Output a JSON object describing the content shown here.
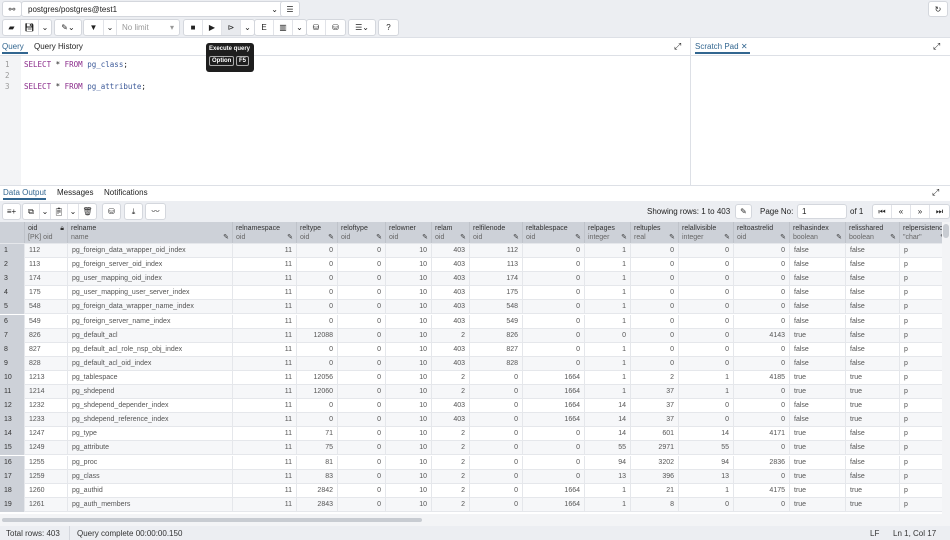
{
  "connection": {
    "label": "postgres/postgres@test1"
  },
  "toolbar": {
    "limit": "No limit",
    "tooltip_title": "Execute query",
    "tooltip_key1": "Option",
    "tooltip_key2": "F5"
  },
  "editor_tabs": [
    "Query",
    "Query History"
  ],
  "scratch_pad": {
    "label": "Scratch Pad"
  },
  "code": [
    "SELECT * FROM pg_class;",
    "",
    "SELECT * FROM pg_attribute;"
  ],
  "output_tabs": [
    "Data Output",
    "Messages",
    "Notifications"
  ],
  "pager": {
    "showing": "Showing rows: 1 to 403",
    "page_label": "Page No:",
    "page": "1",
    "of": "of 1"
  },
  "columns": [
    {
      "name": "oid",
      "type": "[PK] oid"
    },
    {
      "name": "relname",
      "type": "name"
    },
    {
      "name": "relnamespace",
      "type": "oid"
    },
    {
      "name": "reltype",
      "type": "oid"
    },
    {
      "name": "reloftype",
      "type": "oid"
    },
    {
      "name": "relowner",
      "type": "oid"
    },
    {
      "name": "relam",
      "type": "oid"
    },
    {
      "name": "relfilenode",
      "type": "oid"
    },
    {
      "name": "reltablespace",
      "type": "oid"
    },
    {
      "name": "relpages",
      "type": "integer"
    },
    {
      "name": "reltuples",
      "type": "real"
    },
    {
      "name": "relallvisible",
      "type": "integer"
    },
    {
      "name": "reltoastrelid",
      "type": "oid"
    },
    {
      "name": "relhasindex",
      "type": "boolean"
    },
    {
      "name": "relisshared",
      "type": "boolean"
    },
    {
      "name": "relpersistence",
      "type": "\"char\""
    }
  ],
  "rows": [
    [
      "112",
      "pg_foreign_data_wrapper_oid_index",
      "11",
      "0",
      "0",
      "10",
      "403",
      "112",
      "0",
      "1",
      "0",
      "0",
      "0",
      "false",
      "false",
      "p"
    ],
    [
      "113",
      "pg_foreign_server_oid_index",
      "11",
      "0",
      "0",
      "10",
      "403",
      "113",
      "0",
      "1",
      "0",
      "0",
      "0",
      "false",
      "false",
      "p"
    ],
    [
      "174",
      "pg_user_mapping_oid_index",
      "11",
      "0",
      "0",
      "10",
      "403",
      "174",
      "0",
      "1",
      "0",
      "0",
      "0",
      "false",
      "false",
      "p"
    ],
    [
      "175",
      "pg_user_mapping_user_server_index",
      "11",
      "0",
      "0",
      "10",
      "403",
      "175",
      "0",
      "1",
      "0",
      "0",
      "0",
      "false",
      "false",
      "p"
    ],
    [
      "548",
      "pg_foreign_data_wrapper_name_index",
      "11",
      "0",
      "0",
      "10",
      "403",
      "548",
      "0",
      "1",
      "0",
      "0",
      "0",
      "false",
      "false",
      "p"
    ],
    [
      "549",
      "pg_foreign_server_name_index",
      "11",
      "0",
      "0",
      "10",
      "403",
      "549",
      "0",
      "1",
      "0",
      "0",
      "0",
      "false",
      "false",
      "p"
    ],
    [
      "826",
      "pg_default_acl",
      "11",
      "12088",
      "0",
      "10",
      "2",
      "826",
      "0",
      "0",
      "0",
      "0",
      "4143",
      "true",
      "false",
      "p"
    ],
    [
      "827",
      "pg_default_acl_role_nsp_obj_index",
      "11",
      "0",
      "0",
      "10",
      "403",
      "827",
      "0",
      "1",
      "0",
      "0",
      "0",
      "false",
      "false",
      "p"
    ],
    [
      "828",
      "pg_default_acl_oid_index",
      "11",
      "0",
      "0",
      "10",
      "403",
      "828",
      "0",
      "1",
      "0",
      "0",
      "0",
      "false",
      "false",
      "p"
    ],
    [
      "1213",
      "pg_tablespace",
      "11",
      "12056",
      "0",
      "10",
      "2",
      "0",
      "1664",
      "1",
      "2",
      "1",
      "4185",
      "true",
      "true",
      "p"
    ],
    [
      "1214",
      "pg_shdepend",
      "11",
      "12060",
      "0",
      "10",
      "2",
      "0",
      "1664",
      "1",
      "37",
      "1",
      "0",
      "true",
      "true",
      "p"
    ],
    [
      "1232",
      "pg_shdepend_depender_index",
      "11",
      "0",
      "0",
      "10",
      "403",
      "0",
      "1664",
      "14",
      "37",
      "0",
      "0",
      "false",
      "true",
      "p"
    ],
    [
      "1233",
      "pg_shdepend_reference_index",
      "11",
      "0",
      "0",
      "10",
      "403",
      "0",
      "1664",
      "14",
      "37",
      "0",
      "0",
      "false",
      "true",
      "p"
    ],
    [
      "1247",
      "pg_type",
      "11",
      "71",
      "0",
      "10",
      "2",
      "0",
      "0",
      "14",
      "601",
      "14",
      "4171",
      "true",
      "false",
      "p"
    ],
    [
      "1249",
      "pg_attribute",
      "11",
      "75",
      "0",
      "10",
      "2",
      "0",
      "0",
      "55",
      "2971",
      "55",
      "0",
      "true",
      "false",
      "p"
    ],
    [
      "1255",
      "pg_proc",
      "11",
      "81",
      "0",
      "10",
      "2",
      "0",
      "0",
      "94",
      "3202",
      "94",
      "2836",
      "true",
      "false",
      "p"
    ],
    [
      "1259",
      "pg_class",
      "11",
      "83",
      "0",
      "10",
      "2",
      "0",
      "0",
      "13",
      "396",
      "13",
      "0",
      "true",
      "false",
      "p"
    ],
    [
      "1260",
      "pg_authid",
      "11",
      "2842",
      "0",
      "10",
      "2",
      "0",
      "1664",
      "1",
      "21",
      "1",
      "4175",
      "true",
      "true",
      "p"
    ],
    [
      "1261",
      "pg_auth_members",
      "11",
      "2843",
      "0",
      "10",
      "2",
      "0",
      "1664",
      "1",
      "8",
      "0",
      "0",
      "true",
      "true",
      "p"
    ]
  ],
  "status": {
    "total": "Total rows: 403",
    "query": "Query complete 00:00:00.150",
    "eol": "LF",
    "pos": "Ln 1, Col 17"
  }
}
